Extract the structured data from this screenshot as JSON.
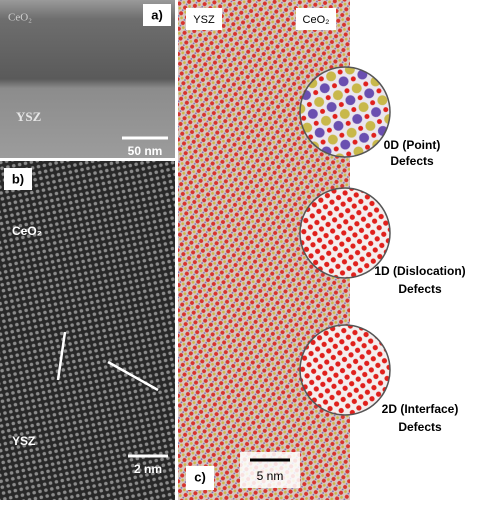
{
  "panels": [
    {
      "label": "a)",
      "top_text": "CeO₂",
      "bottom_text": "YSZ",
      "scale_bar": "50 nm"
    },
    {
      "label": "b)",
      "top_text": "CeO₂",
      "bottom_text": "YSZ",
      "scale_bar": "2 nm"
    },
    {
      "label": "c)",
      "left_text": "YSZ",
      "right_text": "CeO₂",
      "scale_bar": "5 nm",
      "defects": [
        {
          "lines": [
            "0D (Point)",
            "Defects"
          ]
        },
        {
          "lines": [
            "1D (Dislocation)",
            "Defects"
          ]
        },
        {
          "lines": [
            "2D (Interface)",
            "Defects"
          ]
        }
      ]
    }
  ]
}
